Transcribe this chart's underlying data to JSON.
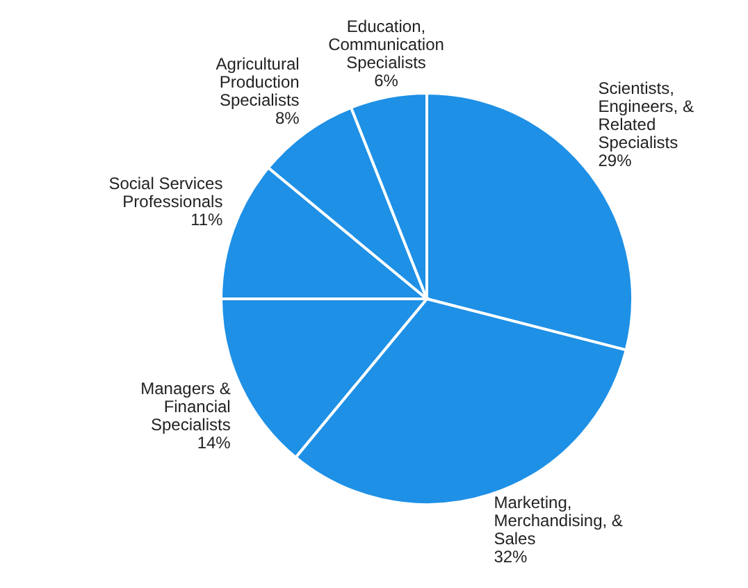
{
  "chart_data": {
    "type": "pie",
    "categories": [
      "Scientists,\nEngineers, &\nRelated\nSpecialists",
      "Marketing,\nMerchandising, &\nSales",
      "Managers &\nFinancial\nSpecialists",
      "Social Services\nProfessionals",
      "Agricultural\nProduction\nSpecialists",
      "Education,\nCommunication\nSpecialists"
    ],
    "values": [
      29,
      32,
      14,
      11,
      8,
      6
    ],
    "value_labels": [
      "29%",
      "32%",
      "14%",
      "11%",
      "8%",
      "6%"
    ],
    "colors": [
      "#1e90e6",
      "#1e90e6",
      "#1e90e6",
      "#1e90e6",
      "#1e90e6",
      "#1e90e6"
    ]
  }
}
